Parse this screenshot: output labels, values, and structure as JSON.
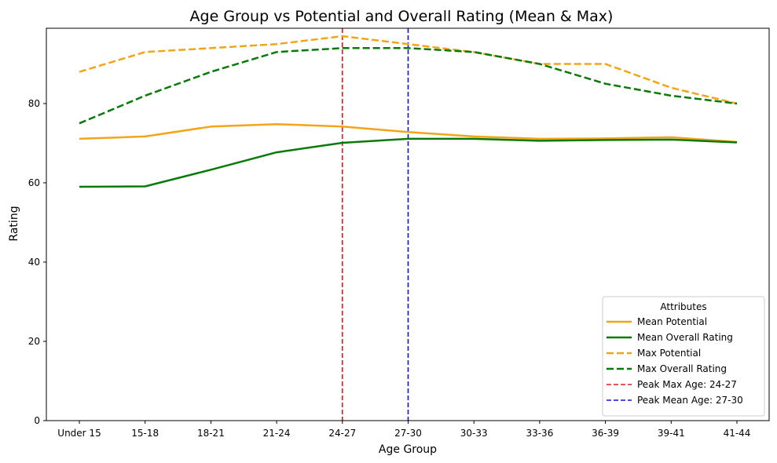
{
  "chart_data": {
    "type": "line",
    "title": "Age Group vs Potential and Overall Rating (Mean & Max)",
    "xlabel": "Age Group",
    "ylabel": "Rating",
    "ylim": [
      0,
      99
    ],
    "yticks": [
      0,
      20,
      40,
      60,
      80
    ],
    "categories": [
      "Under 15",
      "15-18",
      "18-21",
      "21-24",
      "24-27",
      "27-30",
      "30-33",
      "33-36",
      "36-39",
      "39-41",
      "41-44"
    ],
    "series": [
      {
        "name": "Mean Potential",
        "color": "#f2a516",
        "style": "solid",
        "values": [
          71.1,
          71.7,
          74.2,
          74.8,
          74.2,
          72.8,
          71.7,
          71.1,
          71.2,
          71.5,
          70.3
        ]
      },
      {
        "name": "Mean Overall Rating",
        "color": "#077a07",
        "style": "solid",
        "values": [
          59.0,
          59.1,
          63.3,
          67.7,
          70.1,
          71.1,
          71.1,
          70.6,
          70.8,
          70.9,
          70.2
        ]
      },
      {
        "name": "Max Potential",
        "color": "#f2a516",
        "style": "dashed",
        "values": [
          88,
          93,
          94,
          95,
          97,
          95,
          93,
          90,
          90,
          84,
          80
        ]
      },
      {
        "name": "Max Overall Rating",
        "color": "#077a07",
        "style": "dashed",
        "values": [
          75,
          82,
          88,
          93,
          94,
          94,
          93,
          90,
          85,
          82,
          80
        ]
      }
    ],
    "reference_lines": [
      {
        "label": "Peak Max Age: 24-27",
        "category": "24-27",
        "color": "#d62020"
      },
      {
        "label": "Peak Mean Age: 27-30",
        "category": "27-30",
        "color": "#1010e0"
      }
    ],
    "legend": {
      "title": "Attributes",
      "position": "lower-right"
    }
  }
}
